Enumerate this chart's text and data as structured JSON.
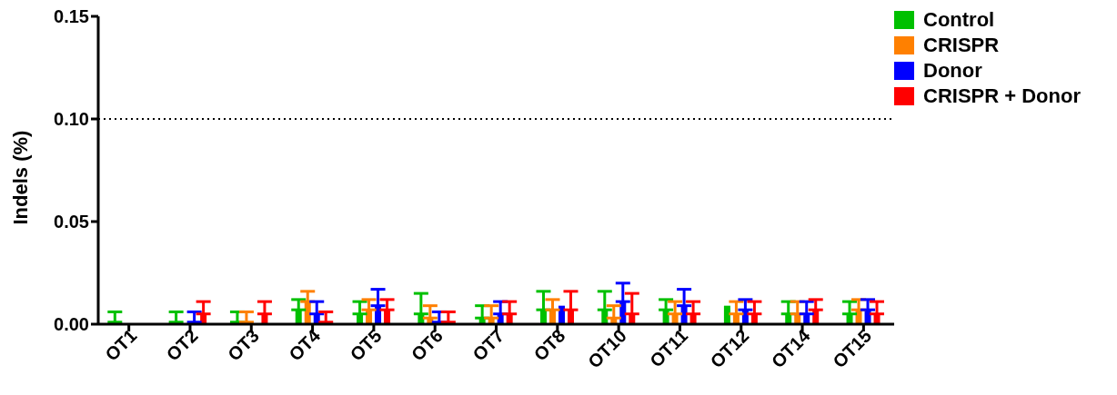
{
  "chart_data": {
    "type": "bar",
    "ylabel": "Indels (%)",
    "categories": [
      "OT1",
      "OT2",
      "OT3",
      "OT4",
      "OT5",
      "OT6",
      "OT7",
      "OT8",
      "OT10",
      "OT11",
      "OT12",
      "OT14",
      "OT15"
    ],
    "series": [
      {
        "name": "Control",
        "color": "#00c000",
        "values": [
          0.001,
          0.001,
          0.001,
          0.007,
          0.005,
          0.005,
          0.003,
          0.007,
          0.007,
          0.007,
          0.009,
          0.005,
          0.005
        ],
        "errors": [
          [
            0.001,
            0.006
          ],
          [
            0.001,
            0.006
          ],
          [
            0.001,
            0.006
          ],
          [
            0.007,
            0.012
          ],
          [
            0.005,
            0.011
          ],
          [
            0.005,
            0.015
          ],
          [
            0.003,
            0.009
          ],
          [
            0.007,
            0.016
          ],
          [
            0.007,
            0.016
          ],
          [
            0.007,
            0.012
          ],
          null,
          [
            0.005,
            0.011
          ],
          [
            0.005,
            0.011
          ]
        ]
      },
      {
        "name": "CRISPR",
        "color": "#ff8000",
        "values": [
          null,
          null,
          0.001,
          0.011,
          0.007,
          0.003,
          0.003,
          0.007,
          0.003,
          0.005,
          0.005,
          0.005,
          0.007
        ],
        "errors": [
          null,
          null,
          [
            0.001,
            0.006
          ],
          [
            0.011,
            0.016
          ],
          [
            0.007,
            0.012
          ],
          [
            0.003,
            0.009
          ],
          [
            0.003,
            0.009
          ],
          [
            0.007,
            0.012
          ],
          [
            0.003,
            0.009
          ],
          [
            0.005,
            0.011
          ],
          [
            0.005,
            0.011
          ],
          [
            0.005,
            0.011
          ],
          [
            0.007,
            0.012
          ]
        ]
      },
      {
        "name": "Donor",
        "color": "#0000ff",
        "values": [
          null,
          0.001,
          null,
          0.005,
          0.009,
          0.001,
          0.005,
          0.009,
          0.011,
          0.009,
          0.007,
          0.005,
          0.007
        ],
        "errors": [
          null,
          [
            0.001,
            0.006
          ],
          null,
          [
            0.005,
            0.011
          ],
          [
            0.009,
            0.017
          ],
          [
            0.001,
            0.006
          ],
          [
            0.005,
            0.011
          ],
          null,
          [
            0.011,
            0.02
          ],
          [
            0.009,
            0.017
          ],
          [
            0.007,
            0.012
          ],
          [
            0.005,
            0.011
          ],
          [
            0.007,
            0.012
          ]
        ]
      },
      {
        "name": "CRISPR + Donor",
        "color": "#ff0000",
        "values": [
          null,
          0.005,
          0.005,
          0.001,
          0.007,
          0.001,
          0.005,
          0.007,
          0.005,
          0.005,
          0.005,
          0.007,
          0.005
        ],
        "errors": [
          null,
          [
            0.005,
            0.011
          ],
          [
            0.005,
            0.011
          ],
          [
            0.001,
            0.006
          ],
          [
            0.007,
            0.012
          ],
          [
            0.001,
            0.006
          ],
          [
            0.005,
            0.011
          ],
          [
            0.007,
            0.016
          ],
          [
            0.005,
            0.015
          ],
          [
            0.005,
            0.011
          ],
          [
            0.005,
            0.011
          ],
          [
            0.007,
            0.012
          ],
          [
            0.005,
            0.011
          ]
        ]
      }
    ],
    "ylim": [
      0,
      0.15
    ],
    "yticks": [
      {
        "value": 0,
        "label": "0.00"
      },
      {
        "value": 0.05,
        "label": "0.05"
      },
      {
        "value": 0.1,
        "label": "0.10"
      },
      {
        "value": 0.15,
        "label": "0.15"
      }
    ],
    "ref_lines": [
      {
        "axis": "y",
        "value": 0.1,
        "color": "#000000",
        "line_style": "dotted"
      }
    ],
    "grid": false,
    "legend": "top right"
  }
}
